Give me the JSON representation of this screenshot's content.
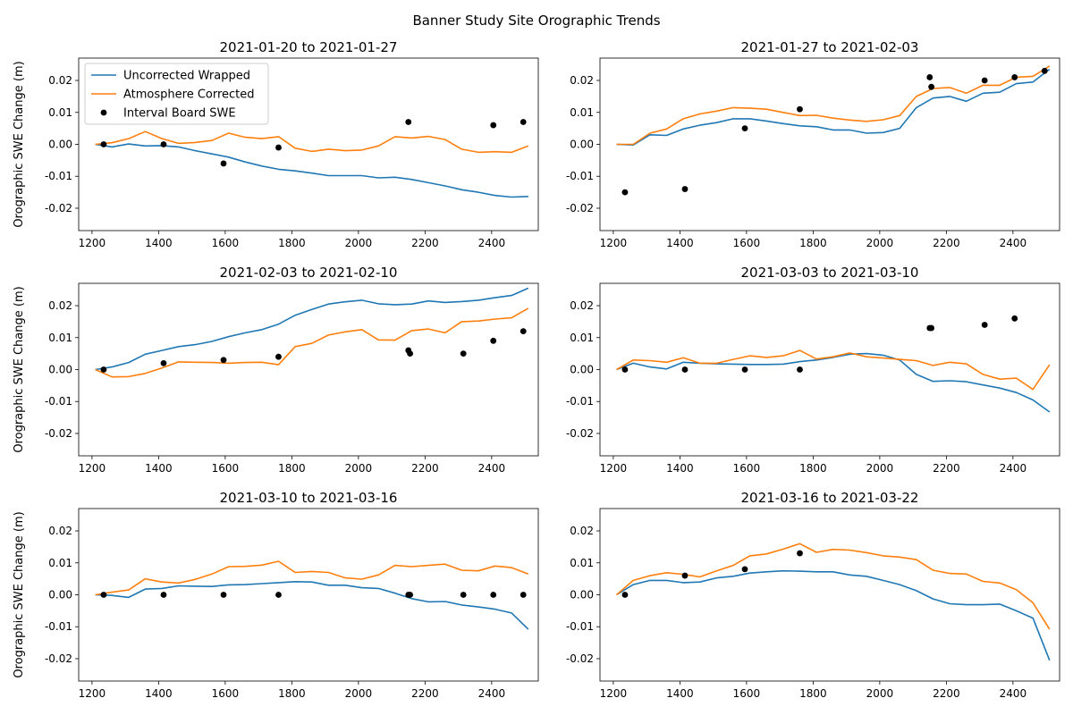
{
  "figure_title": "Banner Study Site Orographic Trends",
  "legend": {
    "placement": "top-left of first panel",
    "entries": [
      {
        "label": "Uncorrected Wrapped",
        "color": "#1f77b4",
        "kind": "line"
      },
      {
        "label": "Atmosphere Corrected",
        "color": "#ff7f0e",
        "kind": "line"
      },
      {
        "label": "Interval Board SWE",
        "color": "#000000",
        "kind": "marker"
      }
    ]
  },
  "colors": {
    "uncorrected": "#1f77b4",
    "corrected": "#ff7f0e",
    "board": "#000000"
  },
  "chart_data": [
    {
      "type": "line",
      "title": "2021-01-20 to 2021-01-27",
      "ylabel": "Orographic SWE Change (m)",
      "xlim": [
        1160,
        2540
      ],
      "ylim": [
        -0.027,
        0.027
      ],
      "xticks": [
        1200,
        1400,
        1600,
        1800,
        2000,
        2200,
        2400
      ],
      "yticks": [
        -0.02,
        -0.01,
        0.0,
        0.01,
        0.02
      ],
      "x": [
        1210,
        1260,
        1310,
        1360,
        1410,
        1460,
        1510,
        1560,
        1610,
        1660,
        1710,
        1760,
        1810,
        1860,
        1910,
        1960,
        2010,
        2060,
        2110,
        2160,
        2210,
        2260,
        2310,
        2360,
        2410,
        2460,
        2510
      ],
      "series": [
        {
          "name": "Uncorrected Wrapped",
          "values": [
            0.0,
            -0.0008,
            0.0001,
            -0.0005,
            -0.0004,
            -0.0008,
            -0.002,
            -0.003,
            -0.004,
            -0.0055,
            -0.0068,
            -0.0078,
            -0.0083,
            -0.009,
            -0.0098,
            -0.0098,
            -0.0098,
            -0.0105,
            -0.0103,
            -0.011,
            -0.012,
            -0.013,
            -0.0142,
            -0.015,
            -0.016,
            -0.0165,
            -0.0163
          ]
        },
        {
          "name": "Atmosphere Corrected",
          "values": [
            0.0,
            0.0005,
            0.0018,
            0.004,
            0.0018,
            0.0003,
            0.0006,
            0.0012,
            0.0035,
            0.0022,
            0.0018,
            0.0024,
            -0.0012,
            -0.0022,
            -0.0015,
            -0.002,
            -0.0018,
            -0.0005,
            0.0024,
            0.002,
            0.0025,
            0.0015,
            -0.0015,
            -0.0025,
            -0.0023,
            -0.0025,
            -0.0005
          ]
        }
      ],
      "board_swe": {
        "name": "Interval Board SWE",
        "x": [
          1235,
          1415,
          1595,
          1760,
          2150,
          2405,
          2495
        ],
        "y": [
          0.0,
          0.0,
          -0.006,
          -0.001,
          0.007,
          0.006,
          0.007
        ]
      }
    },
    {
      "type": "line",
      "title": "2021-01-27 to 2021-02-03",
      "ylabel": "",
      "xlim": [
        1160,
        2540
      ],
      "ylim": [
        -0.027,
        0.027
      ],
      "xticks": [
        1200,
        1400,
        1600,
        1800,
        2000,
        2200,
        2400
      ],
      "yticks": [
        -0.02,
        -0.01,
        0.0,
        0.01,
        0.02
      ],
      "x": [
        1210,
        1260,
        1310,
        1360,
        1410,
        1460,
        1510,
        1560,
        1610,
        1660,
        1710,
        1760,
        1810,
        1860,
        1910,
        1960,
        2010,
        2060,
        2110,
        2160,
        2210,
        2260,
        2310,
        2360,
        2410,
        2460,
        2510
      ],
      "series": [
        {
          "name": "Uncorrected Wrapped",
          "values": [
            0.0,
            -0.0002,
            0.003,
            0.0028,
            0.0048,
            0.006,
            0.0068,
            0.008,
            0.008,
            0.0073,
            0.0065,
            0.0058,
            0.0055,
            0.0045,
            0.0045,
            0.0035,
            0.0037,
            0.005,
            0.0115,
            0.0145,
            0.015,
            0.0135,
            0.016,
            0.0163,
            0.019,
            0.0195,
            0.0235
          ]
        },
        {
          "name": "Atmosphere Corrected",
          "values": [
            0.0,
            0.0,
            0.0035,
            0.0048,
            0.008,
            0.0095,
            0.0104,
            0.0115,
            0.0113,
            0.011,
            0.01,
            0.009,
            0.0091,
            0.0082,
            0.0076,
            0.0072,
            0.0077,
            0.009,
            0.015,
            0.0175,
            0.0178,
            0.016,
            0.0185,
            0.0185,
            0.021,
            0.0213,
            0.0245
          ]
        }
      ],
      "board_swe": {
        "name": "Interval Board SWE",
        "x": [
          1235,
          1415,
          1595,
          1760,
          2150,
          2155,
          2315,
          2405,
          2495
        ],
        "y": [
          -0.015,
          -0.014,
          0.005,
          0.011,
          0.021,
          0.018,
          0.02,
          0.021,
          0.023
        ]
      }
    },
    {
      "type": "line",
      "title": "2021-02-03 to 2021-02-10",
      "ylabel": "Orographic SWE Change (m)",
      "xlim": [
        1160,
        2540
      ],
      "ylim": [
        -0.027,
        0.027
      ],
      "xticks": [
        1200,
        1400,
        1600,
        1800,
        2000,
        2200,
        2400
      ],
      "yticks": [
        -0.02,
        -0.01,
        0.0,
        0.01,
        0.02
      ],
      "x": [
        1210,
        1260,
        1310,
        1360,
        1410,
        1460,
        1510,
        1560,
        1610,
        1660,
        1710,
        1760,
        1810,
        1860,
        1910,
        1960,
        2010,
        2060,
        2110,
        2160,
        2210,
        2260,
        2310,
        2360,
        2410,
        2460,
        2510
      ],
      "series": [
        {
          "name": "Uncorrected Wrapped",
          "values": [
            0.0,
            0.0008,
            0.0022,
            0.0048,
            0.006,
            0.0072,
            0.0078,
            0.0088,
            0.0103,
            0.0115,
            0.0125,
            0.0142,
            0.017,
            0.0188,
            0.0205,
            0.0212,
            0.0217,
            0.0206,
            0.0203,
            0.0205,
            0.0215,
            0.021,
            0.0213,
            0.0217,
            0.0225,
            0.0232,
            0.0255
          ]
        },
        {
          "name": "Atmosphere Corrected",
          "values": [
            0.0,
            -0.0023,
            -0.0022,
            -0.0012,
            0.0005,
            0.0024,
            0.0023,
            0.0022,
            0.002,
            0.0022,
            0.0023,
            0.0015,
            0.0072,
            0.0082,
            0.0108,
            0.0118,
            0.0125,
            0.0093,
            0.0092,
            0.0122,
            0.0127,
            0.0115,
            0.015,
            0.0152,
            0.0158,
            0.0162,
            0.0192
          ]
        }
      ],
      "board_swe": {
        "name": "Interval Board SWE",
        "x": [
          1235,
          1415,
          1595,
          1760,
          2150,
          2155,
          2315,
          2405,
          2495
        ],
        "y": [
          0.0,
          0.002,
          0.003,
          0.004,
          0.006,
          0.005,
          0.005,
          0.009,
          0.012
        ]
      }
    },
    {
      "type": "line",
      "title": "2021-03-03 to 2021-03-10",
      "ylabel": "",
      "xlim": [
        1160,
        2540
      ],
      "ylim": [
        -0.027,
        0.027
      ],
      "xticks": [
        1200,
        1400,
        1600,
        1800,
        2000,
        2200,
        2400
      ],
      "yticks": [
        -0.02,
        -0.01,
        0.0,
        0.01,
        0.02
      ],
      "x": [
        1210,
        1260,
        1310,
        1360,
        1410,
        1460,
        1510,
        1560,
        1610,
        1660,
        1710,
        1760,
        1810,
        1860,
        1910,
        1960,
        2010,
        2060,
        2110,
        2160,
        2210,
        2260,
        2310,
        2360,
        2410,
        2460,
        2510
      ],
      "series": [
        {
          "name": "Uncorrected Wrapped",
          "values": [
            0.0,
            0.002,
            0.0008,
            0.0002,
            0.0023,
            0.002,
            0.0018,
            0.0017,
            0.0016,
            0.0016,
            0.0017,
            0.0025,
            0.003,
            0.0038,
            0.0048,
            0.005,
            0.0045,
            0.003,
            -0.0015,
            -0.0037,
            -0.0035,
            -0.0038,
            -0.0048,
            -0.0058,
            -0.0072,
            -0.0095,
            -0.0133
          ]
        },
        {
          "name": "Atmosphere Corrected",
          "values": [
            0.0,
            0.003,
            0.0028,
            0.0023,
            0.0037,
            0.002,
            0.002,
            0.0032,
            0.0043,
            0.0038,
            0.0043,
            0.006,
            0.0033,
            0.004,
            0.0052,
            0.004,
            0.0036,
            0.0032,
            0.0028,
            0.0013,
            0.0023,
            0.0018,
            -0.0015,
            -0.003,
            -0.0027,
            -0.0062,
            0.0015
          ]
        }
      ],
      "board_swe": {
        "name": "Interval Board SWE",
        "x": [
          1235,
          1415,
          1595,
          1760,
          2150,
          2155,
          2315,
          2405
        ],
        "y": [
          0.0,
          0.0,
          0.0,
          0.0,
          0.013,
          0.013,
          0.014,
          0.016
        ]
      }
    },
    {
      "type": "line",
      "title": "2021-03-10 to 2021-03-16",
      "ylabel": "Orographic SWE Change (m)",
      "xlim": [
        1160,
        2540
      ],
      "ylim": [
        -0.027,
        0.027
      ],
      "xticks": [
        1200,
        1400,
        1600,
        1800,
        2000,
        2200,
        2400
      ],
      "yticks": [
        -0.02,
        -0.01,
        0.0,
        0.01,
        0.02
      ],
      "x": [
        1210,
        1260,
        1310,
        1360,
        1410,
        1460,
        1510,
        1560,
        1610,
        1660,
        1710,
        1760,
        1810,
        1860,
        1910,
        1960,
        2010,
        2060,
        2110,
        2160,
        2210,
        2260,
        2310,
        2360,
        2410,
        2460,
        2510
      ],
      "series": [
        {
          "name": "Uncorrected Wrapped",
          "values": [
            0.0,
            -0.0002,
            -0.0008,
            0.0018,
            0.002,
            0.0028,
            0.0027,
            0.0026,
            0.0031,
            0.0032,
            0.0035,
            0.0038,
            0.0041,
            0.004,
            0.003,
            0.003,
            0.0022,
            0.002,
            0.0005,
            -0.0012,
            -0.0022,
            -0.0021,
            -0.0032,
            -0.0038,
            -0.0045,
            -0.0057,
            -0.0108
          ]
        },
        {
          "name": "Atmosphere Corrected",
          "values": [
            0.0,
            0.0008,
            0.0015,
            0.005,
            0.004,
            0.0037,
            0.0048,
            0.0065,
            0.0088,
            0.0089,
            0.0093,
            0.0105,
            0.007,
            0.0073,
            0.007,
            0.0053,
            0.0049,
            0.0062,
            0.0092,
            0.0088,
            0.0092,
            0.0096,
            0.0077,
            0.0075,
            0.009,
            0.0085,
            0.0065
          ]
        }
      ],
      "board_swe": {
        "name": "Interval Board SWE",
        "x": [
          1235,
          1415,
          1595,
          1760,
          2150,
          2155,
          2315,
          2405,
          2495
        ],
        "y": [
          0.0,
          0.0,
          0.0,
          0.0,
          0.0,
          0.0,
          0.0,
          0.0,
          0.0
        ]
      }
    },
    {
      "type": "line",
      "title": "2021-03-16 to 2021-03-22",
      "ylabel": "",
      "xlim": [
        1160,
        2540
      ],
      "ylim": [
        -0.027,
        0.027
      ],
      "xticks": [
        1200,
        1400,
        1600,
        1800,
        2000,
        2200,
        2400
      ],
      "yticks": [
        -0.02,
        -0.01,
        0.0,
        0.01,
        0.02
      ],
      "x": [
        1210,
        1260,
        1310,
        1360,
        1410,
        1460,
        1510,
        1560,
        1610,
        1660,
        1710,
        1760,
        1810,
        1860,
        1910,
        1960,
        2010,
        2060,
        2110,
        2160,
        2210,
        2260,
        2310,
        2360,
        2410,
        2460,
        2510
      ],
      "series": [
        {
          "name": "Uncorrected Wrapped",
          "values": [
            0.0,
            0.0032,
            0.0045,
            0.0045,
            0.0038,
            0.004,
            0.0053,
            0.0058,
            0.0068,
            0.0072,
            0.0075,
            0.0074,
            0.0072,
            0.0072,
            0.0062,
            0.0058,
            0.0045,
            0.0032,
            0.0013,
            -0.0013,
            -0.0028,
            -0.0031,
            -0.0031,
            -0.0029,
            -0.005,
            -0.0073,
            -0.0205
          ]
        },
        {
          "name": "Atmosphere Corrected",
          "values": [
            0.0,
            0.0045,
            0.006,
            0.0069,
            0.0064,
            0.0056,
            0.0075,
            0.0092,
            0.0122,
            0.0128,
            0.0143,
            0.016,
            0.0133,
            0.0142,
            0.014,
            0.0132,
            0.0122,
            0.0118,
            0.011,
            0.0077,
            0.0067,
            0.0065,
            0.0042,
            0.0037,
            0.0016,
            -0.0025,
            -0.0108
          ]
        }
      ],
      "board_swe": {
        "name": "Interval Board SWE",
        "x": [
          1235,
          1415,
          1595,
          1760
        ],
        "y": [
          0.0,
          0.006,
          0.008,
          0.013
        ]
      }
    }
  ]
}
